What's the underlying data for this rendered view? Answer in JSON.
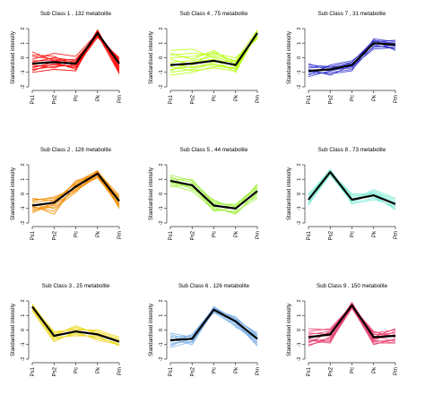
{
  "chart_data": [
    {
      "type": "line",
      "title": "Sub Class  1 , 132 metabolite",
      "ylabel": "Standardised intensity",
      "categories": [
        "Ps1",
        "Ps2",
        "Pc",
        "Pk",
        "Pm"
      ],
      "ylim": [
        -2,
        2
      ],
      "yticks": [
        2,
        1,
        0,
        -1,
        -2
      ],
      "color": "#ff0000",
      "centroid": [
        -0.4,
        -0.3,
        -0.4,
        1.7,
        -0.4
      ],
      "profiles": [
        [
          -0.2,
          -0.2,
          -0.1,
          1.6,
          -0.2
        ],
        [
          -0.6,
          -0.5,
          -0.6,
          1.8,
          -0.7
        ],
        [
          0.1,
          -0.1,
          -0.3,
          1.5,
          -0.1
        ],
        [
          -0.8,
          -0.6,
          -0.5,
          1.9,
          -0.8
        ],
        [
          -0.3,
          0.0,
          -0.2,
          1.7,
          -0.5
        ],
        [
          0.2,
          0.1,
          -0.6,
          1.4,
          0.0
        ],
        [
          -0.9,
          -0.4,
          -0.7,
          1.8,
          -1.0
        ],
        [
          -0.5,
          -0.7,
          -0.2,
          1.6,
          -0.3
        ],
        [
          0.4,
          -0.2,
          -0.4,
          1.5,
          -0.6
        ],
        [
          -1.0,
          -0.8,
          -0.9,
          1.9,
          -0.9
        ],
        [
          -0.1,
          0.3,
          0.1,
          1.7,
          -0.2
        ],
        [
          -0.7,
          -0.3,
          -0.8,
          1.6,
          -1.1
        ]
      ]
    },
    {
      "type": "line",
      "title": "Sub Class  4 , 75 metabolite",
      "ylabel": "Standardised intensity",
      "categories": [
        "Ps1",
        "Ps2",
        "Pc",
        "Pk",
        "Pm"
      ],
      "ylim": [
        -2,
        2
      ],
      "yticks": [
        2,
        1,
        0,
        -1,
        -2
      ],
      "color": "#b5ff0a",
      "centroid": [
        -0.5,
        -0.4,
        -0.2,
        -0.5,
        1.7
      ],
      "profiles": [
        [
          -0.3,
          -0.2,
          0.1,
          -0.4,
          1.6
        ],
        [
          -0.8,
          -0.6,
          -0.5,
          -0.7,
          1.8
        ],
        [
          0.2,
          0.3,
          0.2,
          -0.2,
          1.5
        ],
        [
          -1.0,
          -0.8,
          -0.4,
          -0.8,
          1.9
        ],
        [
          -0.1,
          -0.5,
          0.4,
          -0.3,
          1.4
        ],
        [
          0.5,
          0.6,
          0.0,
          -0.6,
          1.6
        ],
        [
          -0.6,
          -0.9,
          -0.7,
          -0.9,
          1.8
        ],
        [
          0.0,
          0.1,
          0.3,
          0.0,
          1.3
        ],
        [
          -0.9,
          -0.3,
          -0.1,
          -1.0,
          1.7
        ],
        [
          0.3,
          -0.1,
          0.5,
          -0.5,
          1.5
        ],
        [
          -0.4,
          -0.7,
          -0.3,
          -0.2,
          1.9
        ],
        [
          -1.2,
          -1.0,
          -0.6,
          -0.7,
          1.6
        ]
      ]
    },
    {
      "type": "line",
      "title": "Sub Class  7 , 31 metabolite",
      "ylabel": "Standardised intensity",
      "categories": [
        "Ps1",
        "Ps2",
        "Pc",
        "Pk",
        "Pm"
      ],
      "ylim": [
        -2,
        2
      ],
      "yticks": [
        2,
        1,
        0,
        -1,
        -2
      ],
      "color": "#3333cc",
      "centroid": [
        -0.9,
        -0.8,
        -0.5,
        1.0,
        0.9
      ],
      "profiles": [
        [
          -0.7,
          -0.6,
          -0.3,
          1.2,
          1.0
        ],
        [
          -1.1,
          -1.0,
          -0.8,
          0.8,
          0.7
        ],
        [
          -0.4,
          -0.9,
          -0.6,
          1.1,
          1.2
        ],
        [
          -1.2,
          -0.5,
          -0.2,
          0.9,
          0.6
        ],
        [
          -0.9,
          -1.1,
          -0.9,
          1.3,
          1.1
        ],
        [
          -0.6,
          -0.7,
          -0.4,
          0.7,
          0.9
        ],
        [
          -1.0,
          -0.8,
          -0.7,
          1.0,
          0.8
        ],
        [
          -0.8,
          -1.2,
          -0.5,
          1.2,
          0.5
        ],
        [
          -1.3,
          -0.9,
          -0.3,
          1.1,
          1.0
        ],
        [
          -0.5,
          -0.6,
          -0.6,
          0.6,
          0.7
        ]
      ]
    },
    {
      "type": "line",
      "title": "Sub Class  2 , 128 metabolite",
      "ylabel": "Standardised intensity",
      "categories": [
        "Ps1",
        "Ps2",
        "Pc",
        "Pk",
        "Pm"
      ],
      "ylim": [
        -2,
        2
      ],
      "yticks": [
        2,
        1,
        0,
        -1,
        -2
      ],
      "color": "#f28c00",
      "centroid": [
        -0.8,
        -0.6,
        0.5,
        1.4,
        -0.5
      ],
      "profiles": [
        [
          -0.6,
          -0.4,
          0.7,
          1.5,
          -0.3
        ],
        [
          -1.1,
          -0.9,
          0.3,
          1.3,
          -0.8
        ],
        [
          -0.3,
          -0.5,
          0.8,
          1.6,
          -0.4
        ],
        [
          -1.3,
          -0.7,
          0.2,
          1.2,
          -0.9
        ],
        [
          -0.9,
          -1.2,
          0.6,
          1.5,
          -0.1
        ],
        [
          -0.5,
          -0.2,
          0.4,
          1.1,
          -0.7
        ],
        [
          -1.0,
          -0.8,
          0.9,
          1.4,
          -0.6
        ],
        [
          -0.7,
          -1.0,
          0.1,
          1.6,
          -1.0
        ],
        [
          -1.2,
          -0.6,
          0.5,
          1.3,
          -0.2
        ],
        [
          -0.4,
          -0.3,
          0.3,
          1.2,
          -0.5
        ],
        [
          -0.8,
          -1.4,
          0.7,
          1.5,
          -0.8
        ]
      ]
    },
    {
      "type": "line",
      "title": "Sub Class  5 , 44 metabolite",
      "ylabel": "Standardised intensity",
      "categories": [
        "Ps1",
        "Ps2",
        "Pc",
        "Pk",
        "Pm"
      ],
      "ylim": [
        -2,
        2
      ],
      "yticks": [
        2,
        1,
        0,
        -1,
        -2
      ],
      "color": "#9ff03c",
      "centroid": [
        0.9,
        0.6,
        -0.8,
        -1.0,
        0.2
      ],
      "profiles": [
        [
          1.1,
          0.8,
          -0.6,
          -0.8,
          0.4
        ],
        [
          0.7,
          0.4,
          -1.0,
          -1.3,
          0.0
        ],
        [
          1.3,
          0.9,
          -0.5,
          -0.9,
          0.6
        ],
        [
          0.6,
          0.2,
          -1.1,
          -1.2,
          -0.3
        ],
        [
          1.0,
          1.0,
          -0.7,
          -0.7,
          0.5
        ],
        [
          0.8,
          0.5,
          -0.9,
          -1.4,
          0.1
        ],
        [
          1.2,
          0.3,
          -0.4,
          -1.1,
          0.7
        ],
        [
          0.5,
          0.7,
          -1.2,
          -0.9,
          -0.2
        ],
        [
          0.9,
          0.6,
          -0.8,
          -1.0,
          0.3
        ]
      ]
    },
    {
      "type": "line",
      "title": "Sub Class  8 , 73 metabolite",
      "ylabel": "Standardised intensity",
      "categories": [
        "Ps1",
        "Ps2",
        "Pc",
        "Pk",
        "Pm"
      ],
      "ylim": [
        -2,
        2
      ],
      "yticks": [
        2,
        1,
        0,
        -1,
        -2
      ],
      "color": "#7fecd6",
      "centroid": [
        -0.4,
        1.5,
        -0.4,
        -0.1,
        -0.7
      ],
      "profiles": [
        [
          -0.2,
          1.6,
          -0.2,
          0.1,
          -0.5
        ],
        [
          -0.6,
          1.4,
          -0.6,
          -0.3,
          -0.9
        ],
        [
          -0.1,
          1.7,
          -0.5,
          0.2,
          -0.4
        ],
        [
          -0.7,
          1.3,
          -0.3,
          -0.2,
          -1.0
        ],
        [
          -0.3,
          1.5,
          0.0,
          0.0,
          -0.6
        ],
        [
          -0.5,
          1.6,
          -0.7,
          -0.4,
          -0.8
        ],
        [
          0.0,
          1.4,
          -0.4,
          0.3,
          -0.3
        ],
        [
          -0.8,
          1.5,
          -0.1,
          -0.1,
          -1.1
        ],
        [
          -0.4,
          1.3,
          -0.6,
          0.1,
          -0.7
        ]
      ]
    },
    {
      "type": "line",
      "title": "Sub Class  3 , 25 metabolite",
      "ylabel": "Standardised intensity",
      "categories": [
        "Ps1",
        "Ps2",
        "Pc",
        "Pk",
        "Pm"
      ],
      "ylim": [
        -2,
        2
      ],
      "yticks": [
        2,
        1,
        0,
        -1,
        -2
      ],
      "color": "#ecd81c",
      "centroid": [
        1.6,
        -0.4,
        -0.1,
        -0.3,
        -0.8
      ],
      "profiles": [
        [
          1.7,
          -0.2,
          0.1,
          -0.1,
          -0.6
        ],
        [
          1.5,
          -0.6,
          -0.3,
          -0.5,
          -1.0
        ],
        [
          1.8,
          -0.3,
          0.2,
          -0.2,
          -0.7
        ],
        [
          1.4,
          -0.7,
          -0.2,
          -0.6,
          -0.9
        ],
        [
          1.6,
          -0.1,
          0.0,
          0.0,
          -0.5
        ],
        [
          1.7,
          -0.5,
          -0.4,
          -0.4,
          -1.1
        ],
        [
          1.5,
          -0.4,
          0.3,
          -0.3,
          -0.8
        ],
        [
          1.3,
          -0.8,
          -0.1,
          -0.7,
          -1.0
        ]
      ]
    },
    {
      "type": "line",
      "title": "Sub Class  6 , 126 metabolite",
      "ylabel": "Standardised intensity",
      "categories": [
        "Ps1",
        "Ps2",
        "Pc",
        "Pk",
        "Pm"
      ],
      "ylim": [
        -2,
        2
      ],
      "yticks": [
        2,
        1,
        0,
        -1,
        -2
      ],
      "color": "#7ab0e6",
      "centroid": [
        -0.7,
        -0.6,
        1.4,
        0.6,
        -0.6
      ],
      "profiles": [
        [
          -0.5,
          -0.4,
          1.5,
          0.8,
          -0.4
        ],
        [
          -0.9,
          -0.8,
          1.3,
          0.4,
          -0.8
        ],
        [
          -0.3,
          -0.7,
          1.6,
          0.7,
          -0.3
        ],
        [
          -1.1,
          -0.5,
          1.2,
          0.3,
          -0.9
        ],
        [
          -0.6,
          -1.0,
          1.4,
          0.9,
          -0.5
        ],
        [
          -0.8,
          -0.3,
          1.5,
          0.5,
          -0.7
        ],
        [
          -0.4,
          -0.9,
          1.3,
          0.6,
          -1.0
        ],
        [
          -1.0,
          -0.6,
          1.6,
          0.2,
          -0.6
        ],
        [
          -0.7,
          -0.4,
          1.2,
          0.7,
          -0.2
        ],
        [
          -1.2,
          -0.8,
          1.4,
          0.5,
          -1.1
        ],
        [
          -0.2,
          -0.5,
          1.5,
          0.8,
          -0.4
        ]
      ]
    },
    {
      "type": "line",
      "title": "Sub Class  9 , 150 metabolite",
      "ylabel": "Standardised intensity",
      "categories": [
        "Ps1",
        "Ps2",
        "Pc",
        "Pk",
        "Pm"
      ],
      "ylim": [
        -2,
        2
      ],
      "yticks": [
        2,
        1,
        0,
        -1,
        -2
      ],
      "color": "#e8386a",
      "centroid": [
        -0.5,
        -0.3,
        1.7,
        -0.5,
        -0.4
      ],
      "profiles": [
        [
          -0.3,
          -0.1,
          1.8,
          -0.3,
          -0.2
        ],
        [
          -0.8,
          -0.6,
          1.6,
          -0.8,
          -0.7
        ],
        [
          -0.1,
          0.1,
          1.7,
          -0.2,
          0.0
        ],
        [
          -1.0,
          -0.7,
          1.5,
          -0.9,
          -0.9
        ],
        [
          -0.4,
          -0.4,
          1.9,
          -0.6,
          -0.3
        ],
        [
          0.1,
          0.0,
          1.6,
          -0.1,
          -0.5
        ],
        [
          -0.7,
          -0.9,
          1.8,
          -0.7,
          -0.1
        ],
        [
          -0.5,
          -0.2,
          1.7,
          -0.4,
          -0.8
        ],
        [
          -1.1,
          -0.5,
          1.6,
          -1.0,
          -0.6
        ],
        [
          -0.2,
          -0.3,
          1.8,
          -0.5,
          0.1
        ],
        [
          -0.6,
          -0.8,
          1.5,
          -0.3,
          -0.4
        ],
        [
          -0.9,
          -0.1,
          1.7,
          -0.7,
          -0.9
        ]
      ]
    }
  ]
}
